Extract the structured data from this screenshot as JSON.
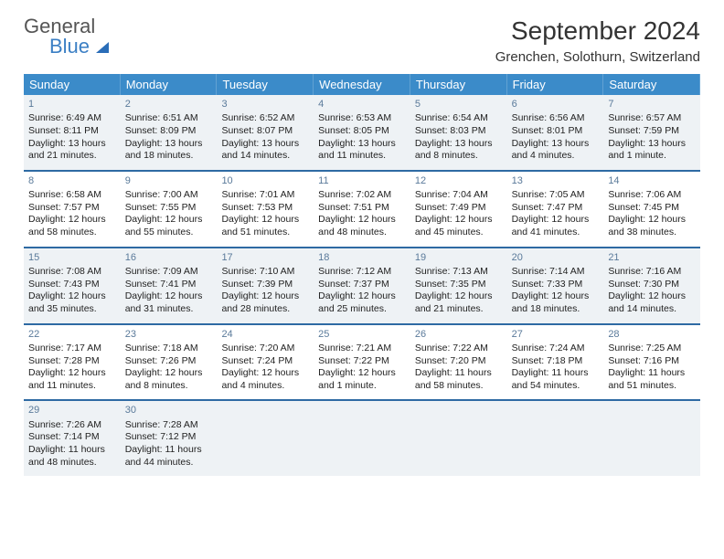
{
  "logo": {
    "top": "General",
    "bottom": "Blue"
  },
  "title": "September 2024",
  "location": "Grenchen, Solothurn, Switzerland",
  "colors": {
    "header_bg": "#3b8bc9",
    "header_text": "#ffffff",
    "divider": "#2e6aa3",
    "even_row_bg": "#eef2f5",
    "odd_row_bg": "#ffffff",
    "day_num": "#5a7a9a",
    "logo_blue": "#3b7fc4"
  },
  "day_headers": [
    "Sunday",
    "Monday",
    "Tuesday",
    "Wednesday",
    "Thursday",
    "Friday",
    "Saturday"
  ],
  "weeks": [
    [
      {
        "n": "1",
        "sr": "Sunrise: 6:49 AM",
        "ss": "Sunset: 8:11 PM",
        "d1": "Daylight: 13 hours",
        "d2": "and 21 minutes."
      },
      {
        "n": "2",
        "sr": "Sunrise: 6:51 AM",
        "ss": "Sunset: 8:09 PM",
        "d1": "Daylight: 13 hours",
        "d2": "and 18 minutes."
      },
      {
        "n": "3",
        "sr": "Sunrise: 6:52 AM",
        "ss": "Sunset: 8:07 PM",
        "d1": "Daylight: 13 hours",
        "d2": "and 14 minutes."
      },
      {
        "n": "4",
        "sr": "Sunrise: 6:53 AM",
        "ss": "Sunset: 8:05 PM",
        "d1": "Daylight: 13 hours",
        "d2": "and 11 minutes."
      },
      {
        "n": "5",
        "sr": "Sunrise: 6:54 AM",
        "ss": "Sunset: 8:03 PM",
        "d1": "Daylight: 13 hours",
        "d2": "and 8 minutes."
      },
      {
        "n": "6",
        "sr": "Sunrise: 6:56 AM",
        "ss": "Sunset: 8:01 PM",
        "d1": "Daylight: 13 hours",
        "d2": "and 4 minutes."
      },
      {
        "n": "7",
        "sr": "Sunrise: 6:57 AM",
        "ss": "Sunset: 7:59 PM",
        "d1": "Daylight: 13 hours",
        "d2": "and 1 minute."
      }
    ],
    [
      {
        "n": "8",
        "sr": "Sunrise: 6:58 AM",
        "ss": "Sunset: 7:57 PM",
        "d1": "Daylight: 12 hours",
        "d2": "and 58 minutes."
      },
      {
        "n": "9",
        "sr": "Sunrise: 7:00 AM",
        "ss": "Sunset: 7:55 PM",
        "d1": "Daylight: 12 hours",
        "d2": "and 55 minutes."
      },
      {
        "n": "10",
        "sr": "Sunrise: 7:01 AM",
        "ss": "Sunset: 7:53 PM",
        "d1": "Daylight: 12 hours",
        "d2": "and 51 minutes."
      },
      {
        "n": "11",
        "sr": "Sunrise: 7:02 AM",
        "ss": "Sunset: 7:51 PM",
        "d1": "Daylight: 12 hours",
        "d2": "and 48 minutes."
      },
      {
        "n": "12",
        "sr": "Sunrise: 7:04 AM",
        "ss": "Sunset: 7:49 PM",
        "d1": "Daylight: 12 hours",
        "d2": "and 45 minutes."
      },
      {
        "n": "13",
        "sr": "Sunrise: 7:05 AM",
        "ss": "Sunset: 7:47 PM",
        "d1": "Daylight: 12 hours",
        "d2": "and 41 minutes."
      },
      {
        "n": "14",
        "sr": "Sunrise: 7:06 AM",
        "ss": "Sunset: 7:45 PM",
        "d1": "Daylight: 12 hours",
        "d2": "and 38 minutes."
      }
    ],
    [
      {
        "n": "15",
        "sr": "Sunrise: 7:08 AM",
        "ss": "Sunset: 7:43 PM",
        "d1": "Daylight: 12 hours",
        "d2": "and 35 minutes."
      },
      {
        "n": "16",
        "sr": "Sunrise: 7:09 AM",
        "ss": "Sunset: 7:41 PM",
        "d1": "Daylight: 12 hours",
        "d2": "and 31 minutes."
      },
      {
        "n": "17",
        "sr": "Sunrise: 7:10 AM",
        "ss": "Sunset: 7:39 PM",
        "d1": "Daylight: 12 hours",
        "d2": "and 28 minutes."
      },
      {
        "n": "18",
        "sr": "Sunrise: 7:12 AM",
        "ss": "Sunset: 7:37 PM",
        "d1": "Daylight: 12 hours",
        "d2": "and 25 minutes."
      },
      {
        "n": "19",
        "sr": "Sunrise: 7:13 AM",
        "ss": "Sunset: 7:35 PM",
        "d1": "Daylight: 12 hours",
        "d2": "and 21 minutes."
      },
      {
        "n": "20",
        "sr": "Sunrise: 7:14 AM",
        "ss": "Sunset: 7:33 PM",
        "d1": "Daylight: 12 hours",
        "d2": "and 18 minutes."
      },
      {
        "n": "21",
        "sr": "Sunrise: 7:16 AM",
        "ss": "Sunset: 7:30 PM",
        "d1": "Daylight: 12 hours",
        "d2": "and 14 minutes."
      }
    ],
    [
      {
        "n": "22",
        "sr": "Sunrise: 7:17 AM",
        "ss": "Sunset: 7:28 PM",
        "d1": "Daylight: 12 hours",
        "d2": "and 11 minutes."
      },
      {
        "n": "23",
        "sr": "Sunrise: 7:18 AM",
        "ss": "Sunset: 7:26 PM",
        "d1": "Daylight: 12 hours",
        "d2": "and 8 minutes."
      },
      {
        "n": "24",
        "sr": "Sunrise: 7:20 AM",
        "ss": "Sunset: 7:24 PM",
        "d1": "Daylight: 12 hours",
        "d2": "and 4 minutes."
      },
      {
        "n": "25",
        "sr": "Sunrise: 7:21 AM",
        "ss": "Sunset: 7:22 PM",
        "d1": "Daylight: 12 hours",
        "d2": "and 1 minute."
      },
      {
        "n": "26",
        "sr": "Sunrise: 7:22 AM",
        "ss": "Sunset: 7:20 PM",
        "d1": "Daylight: 11 hours",
        "d2": "and 58 minutes."
      },
      {
        "n": "27",
        "sr": "Sunrise: 7:24 AM",
        "ss": "Sunset: 7:18 PM",
        "d1": "Daylight: 11 hours",
        "d2": "and 54 minutes."
      },
      {
        "n": "28",
        "sr": "Sunrise: 7:25 AM",
        "ss": "Sunset: 7:16 PM",
        "d1": "Daylight: 11 hours",
        "d2": "and 51 minutes."
      }
    ],
    [
      {
        "n": "29",
        "sr": "Sunrise: 7:26 AM",
        "ss": "Sunset: 7:14 PM",
        "d1": "Daylight: 11 hours",
        "d2": "and 48 minutes."
      },
      {
        "n": "30",
        "sr": "Sunrise: 7:28 AM",
        "ss": "Sunset: 7:12 PM",
        "d1": "Daylight: 11 hours",
        "d2": "and 44 minutes."
      },
      null,
      null,
      null,
      null,
      null
    ]
  ]
}
